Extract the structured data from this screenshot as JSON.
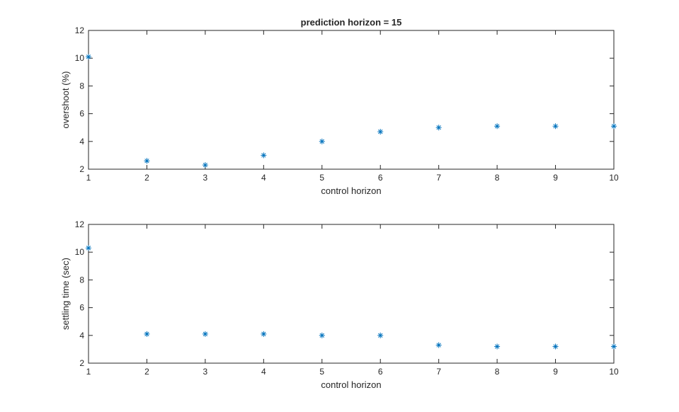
{
  "chart_data": [
    {
      "type": "scatter",
      "title": "prediction horizon = 15",
      "xlabel": "control horizon",
      "ylabel": "overshoot (%)",
      "xlim": [
        1,
        10
      ],
      "ylim": [
        2,
        12
      ],
      "xticks": [
        1,
        2,
        3,
        4,
        5,
        6,
        7,
        8,
        9,
        10
      ],
      "yticks": [
        2,
        4,
        6,
        8,
        10,
        12
      ],
      "marker": "*",
      "color": "#0072BD",
      "grid": false,
      "x": [
        1,
        2,
        3,
        4,
        5,
        6,
        7,
        8,
        9,
        10
      ],
      "y": [
        10.1,
        2.6,
        2.3,
        3.0,
        4.0,
        4.7,
        5.0,
        5.1,
        5.1,
        5.1
      ]
    },
    {
      "type": "scatter",
      "title": "",
      "xlabel": "control horizon",
      "ylabel": "settling time (sec)",
      "xlim": [
        1,
        10
      ],
      "ylim": [
        2,
        12
      ],
      "xticks": [
        1,
        2,
        3,
        4,
        5,
        6,
        7,
        8,
        9,
        10
      ],
      "yticks": [
        2,
        4,
        6,
        8,
        10,
        12
      ],
      "marker": "*",
      "color": "#0072BD",
      "grid": false,
      "x": [
        1,
        2,
        3,
        4,
        5,
        6,
        7,
        8,
        9,
        10
      ],
      "y": [
        10.3,
        4.1,
        4.1,
        4.1,
        4.0,
        4.0,
        3.3,
        3.2,
        3.2,
        3.2
      ]
    }
  ]
}
